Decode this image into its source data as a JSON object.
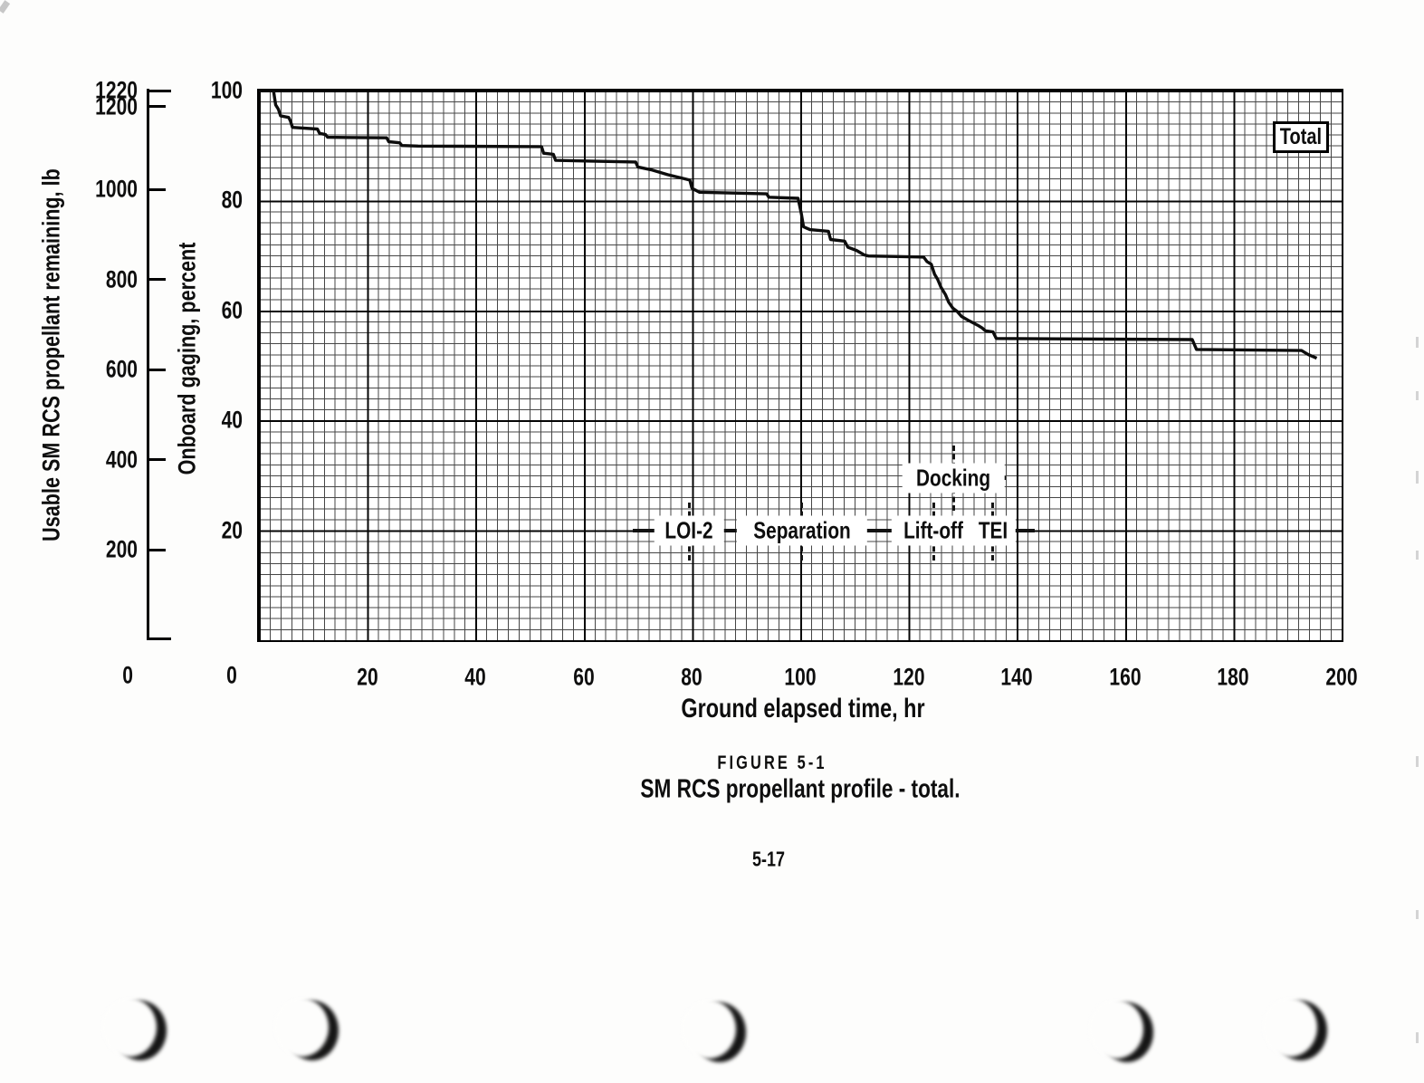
{
  "page": {
    "figure_label": "FIGURE 5-1",
    "page_number": "5-17"
  },
  "chart_data": {
    "type": "line",
    "title": "SM RCS propellant profile - total.",
    "xlabel": "Ground elapsed time, hr",
    "xlim": [
      0,
      200
    ],
    "x_ticks": [
      0,
      20,
      40,
      60,
      80,
      100,
      120,
      140,
      160,
      180,
      200
    ],
    "grid": {
      "visible": true,
      "minor_step_hr": 2,
      "minor_step_pct": 2,
      "major_step_hr": 20,
      "major_step_pct": 20
    },
    "percent_axis": {
      "label": "Onboard gaging, percent",
      "lim": [
        0,
        100
      ],
      "ticks": [
        100,
        80,
        60,
        40,
        20,
        0
      ]
    },
    "lb_axis": {
      "label": "Usable SM RCS propellant remaining, lb",
      "lim": [
        0,
        1220
      ],
      "ticks": [
        1220,
        1200,
        1000,
        800,
        600,
        400,
        200,
        0
      ]
    },
    "legend": {
      "label": "Total",
      "position": "top-right"
    },
    "annotations": [
      {
        "label": "LOI-2",
        "t": 79.5,
        "label_pct": 20,
        "line_pct": [
          25,
          14.5
        ]
      },
      {
        "label": "Separation",
        "t": 100.3,
        "label_pct": 20,
        "line_pct": [
          25,
          14.5
        ]
      },
      {
        "label": "Lift-off",
        "t": 124.6,
        "label_pct": 20,
        "line_pct": [
          25,
          14.5
        ]
      },
      {
        "label": "Docking",
        "t": 128.3,
        "label_pct": 29.5,
        "line_pct": [
          35.5,
          23.5
        ]
      },
      {
        "label": "TEI",
        "t": 135.6,
        "label_pct": 20,
        "line_pct": [
          25,
          14.5
        ]
      }
    ],
    "series": [
      {
        "name": "Total",
        "units": {
          "x": "hr",
          "y": "percent"
        },
        "points": [
          [
            0,
            100
          ],
          [
            2.7,
            100
          ],
          [
            3.1,
            97.4
          ],
          [
            3.6,
            96.6
          ],
          [
            4.0,
            95.4
          ],
          [
            5.5,
            95.1
          ],
          [
            5.8,
            94.5
          ],
          [
            6.2,
            93.3
          ],
          [
            10.8,
            93.0
          ],
          [
            11.2,
            92.2
          ],
          [
            12.3,
            92.0
          ],
          [
            12.7,
            91.5
          ],
          [
            23.6,
            91.4
          ],
          [
            24.0,
            90.7
          ],
          [
            26.0,
            90.5
          ],
          [
            26.4,
            90.0
          ],
          [
            29.4,
            89.9
          ],
          [
            52.2,
            89.8
          ],
          [
            52.6,
            88.6
          ],
          [
            54.4,
            88.4
          ],
          [
            54.8,
            87.3
          ],
          [
            69.6,
            87.0
          ],
          [
            70.0,
            86.1
          ],
          [
            72.4,
            85.6
          ],
          [
            75.5,
            84.7
          ],
          [
            78.0,
            84.1
          ],
          [
            79.6,
            83.7
          ],
          [
            80.0,
            82.2
          ],
          [
            81.4,
            81.5
          ],
          [
            93.8,
            81.2
          ],
          [
            94.2,
            80.6
          ],
          [
            99.6,
            80.4
          ],
          [
            100.2,
            77.6
          ],
          [
            100.6,
            75.2
          ],
          [
            101.8,
            74.7
          ],
          [
            105.2,
            74.4
          ],
          [
            105.6,
            72.9
          ],
          [
            108.2,
            72.6
          ],
          [
            108.8,
            71.5
          ],
          [
            110.4,
            70.9
          ],
          [
            111.8,
            70.1
          ],
          [
            112.6,
            69.9
          ],
          [
            122.8,
            69.7
          ],
          [
            123.4,
            68.9
          ],
          [
            124.2,
            68.4
          ],
          [
            124.8,
            66.6
          ],
          [
            125.4,
            65.6
          ],
          [
            126.0,
            64.2
          ],
          [
            126.8,
            62.9
          ],
          [
            127.4,
            61.5
          ],
          [
            128.2,
            60.4
          ],
          [
            129.0,
            59.8
          ],
          [
            129.8,
            58.9
          ],
          [
            131.2,
            58.1
          ],
          [
            132.8,
            57.3
          ],
          [
            133.6,
            56.8
          ],
          [
            134.2,
            56.3
          ],
          [
            135.6,
            56.1
          ],
          [
            136.2,
            54.9
          ],
          [
            172.4,
            54.7
          ],
          [
            173.2,
            52.9
          ],
          [
            192.6,
            52.7
          ],
          [
            193.8,
            52.0
          ],
          [
            195.4,
            51.3
          ]
        ]
      }
    ]
  }
}
